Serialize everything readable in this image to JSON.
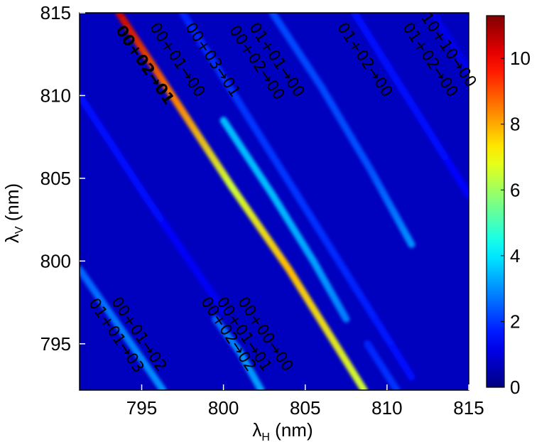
{
  "chart_data": {
    "type": "heatmap",
    "xlabel": [
      "λ",
      "H",
      " (nm)"
    ],
    "ylabel": [
      "λ",
      "V",
      " (nm)"
    ],
    "xlim": [
      791.2,
      815
    ],
    "ylim": [
      792.2,
      815
    ],
    "xticks": [
      795,
      800,
      805,
      810,
      815
    ],
    "yticks": [
      795,
      800,
      805,
      810,
      815
    ],
    "zlim": [
      0,
      11.3
    ],
    "zticks": [
      0,
      2,
      4,
      6,
      8,
      10
    ],
    "colormap": "jet",
    "background_value": 0.7,
    "ridges": [
      {
        "x": [
          793.6,
          797,
          800.5,
          804,
          808.6
        ],
        "y": [
          815,
          809.8,
          804.5,
          799.5,
          792.2
        ],
        "values": [
          10.5,
          8.5,
          6.5,
          7.8,
          6.5
        ]
      },
      {
        "x": [
          797.5,
          801,
          804.5,
          808,
          811.5
        ],
        "y": [
          815,
          809.5,
          804,
          798.5,
          793
        ],
        "values": [
          1.8,
          2,
          2,
          1.8,
          1.5
        ]
      },
      {
        "x": [
          800,
          803,
          805.5,
          807.5
        ],
        "y": [
          808.5,
          804,
          800,
          796.5
        ],
        "values": [
          3.5,
          3.5,
          3.2,
          2.8
        ]
      },
      {
        "x": [
          803,
          806,
          809,
          811.5
        ],
        "y": [
          815,
          810.5,
          805.5,
          801
        ],
        "values": [
          2.2,
          2.2,
          2.3,
          3
        ]
      },
      {
        "x": [
          808,
          811.5,
          815
        ],
        "y": [
          815,
          809.5,
          804
        ],
        "values": [
          1.6,
          1.6,
          1.4
        ]
      },
      {
        "x": [
          812.8,
          815
        ],
        "y": [
          815,
          811.5
        ],
        "values": [
          1.2,
          1.2
        ]
      },
      {
        "x": [
          791.2,
          795.5,
          800
        ],
        "y": [
          810,
          803.5,
          797
        ],
        "values": [
          1.5,
          1.5,
          1.3
        ]
      },
      {
        "x": [
          791.2,
          794,
          796.3
        ],
        "y": [
          799.5,
          795.5,
          792.2
        ],
        "values": [
          2.5,
          2.8,
          3
        ]
      },
      {
        "x": [
          799.5,
          801,
          802.3
        ],
        "y": [
          796.5,
          794.5,
          792.2
        ],
        "values": [
          2.5,
          3,
          3.2
        ]
      },
      {
        "x": [
          808.8,
          810.6
        ],
        "y": [
          795,
          792.2
        ],
        "values": [
          1.8,
          2
        ]
      }
    ],
    "annotations": [
      {
        "text": "00+02→01",
        "color": "#000000"
      },
      {
        "text": "00+01→00",
        "color": "#ffffff"
      },
      {
        "text": "00+03→01",
        "color": "#ffffff"
      },
      {
        "text": "00+02→00",
        "color": "#ffffff"
      },
      {
        "text": "01+01→00",
        "color": "#ffffff"
      },
      {
        "text": "01+02→00",
        "color": "#ffffff"
      },
      {
        "text": "10+10→00",
        "color": "#ffffff"
      },
      {
        "text": "01+02→00",
        "color": "#ffffff"
      },
      {
        "text": "00+01→02",
        "color": "#ffffff"
      },
      {
        "text": "01+01→03",
        "color": "#ffffff"
      },
      {
        "text": "00+00→00",
        "color": "#ffffff"
      },
      {
        "text": "00+01→01",
        "color": "#ffffff"
      },
      {
        "text": "00+02→02",
        "color": "#ffffff"
      }
    ]
  }
}
